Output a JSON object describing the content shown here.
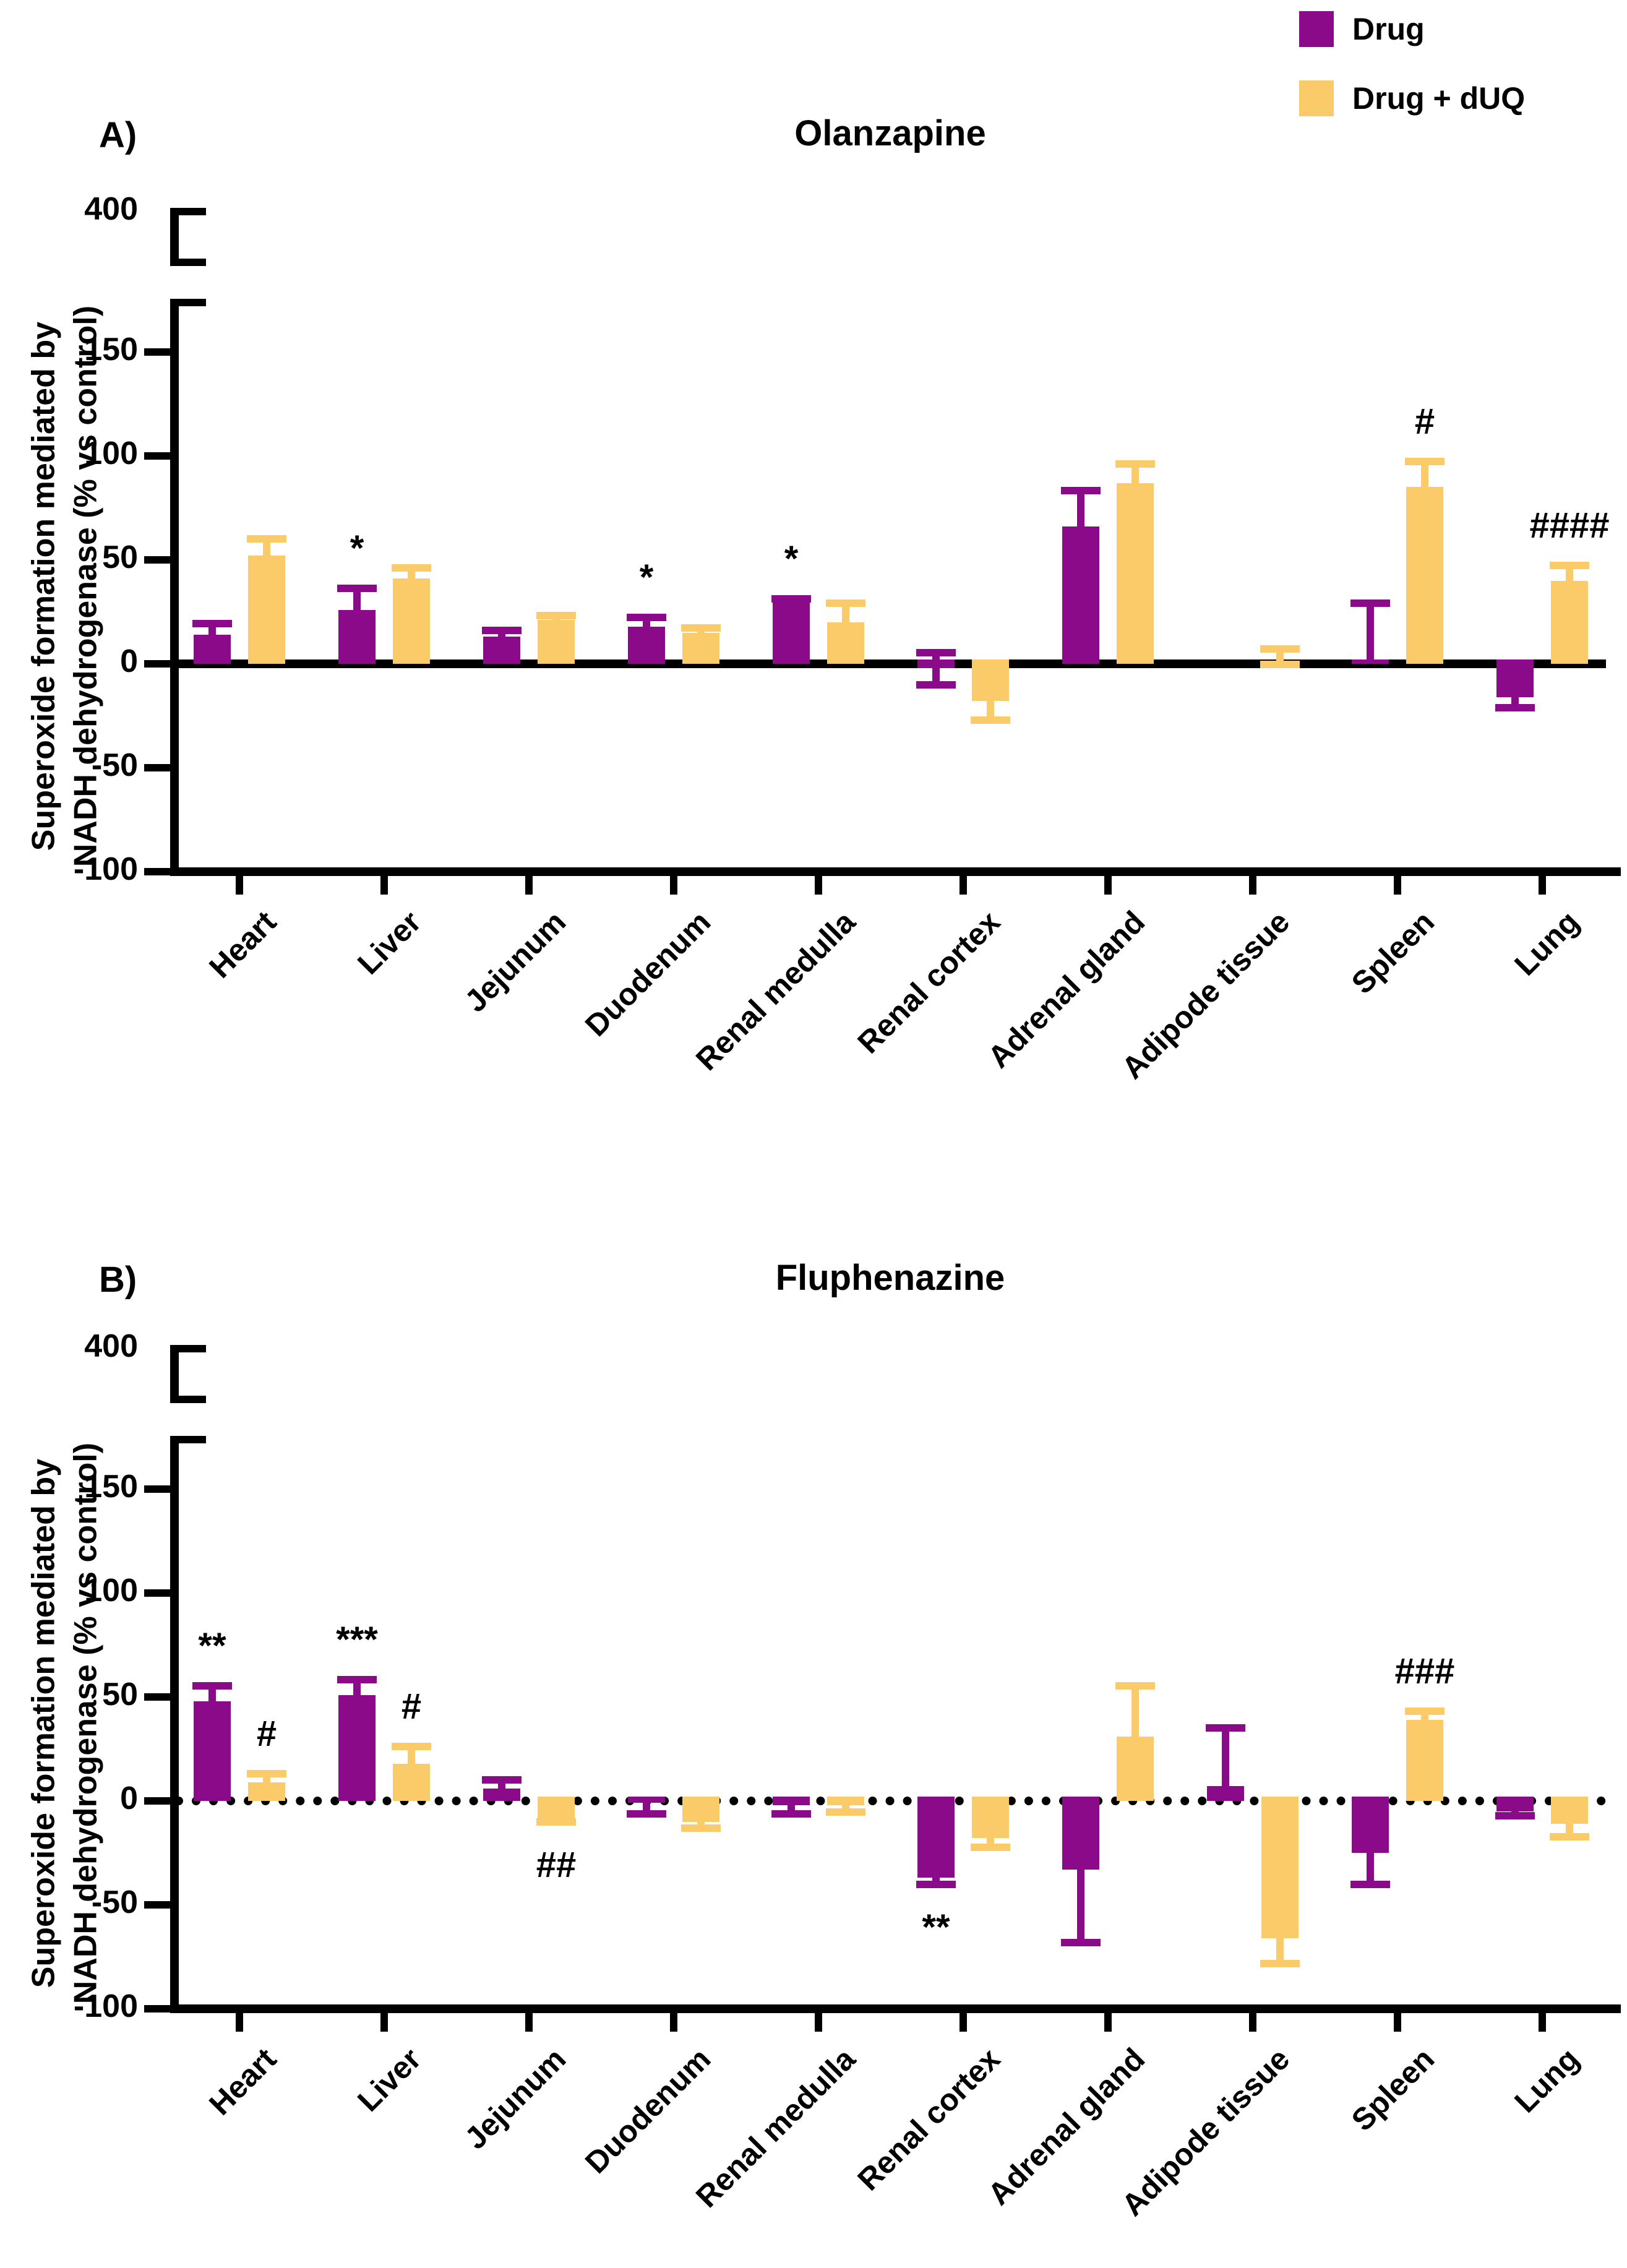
{
  "legend": {
    "items": [
      {
        "label": "Drug",
        "color": "#8B0A89",
        "icon": "square-swatch"
      },
      {
        "label": "Drug + dUQ",
        "color": "#FCCB69",
        "icon": "square-swatch"
      }
    ]
  },
  "y_axis": {
    "label_line1": "Superoxide  formation mediated by",
    "label_line2": "NADH dehydrogenase (% vs control)",
    "ticks": [
      {
        "label": "400",
        "value": 400
      },
      {
        "label": "150",
        "value": 150
      },
      {
        "label": "100",
        "value": 100
      },
      {
        "label": "50",
        "value": 50
      },
      {
        "label": "0",
        "value": 0
      },
      {
        "label": "-50",
        "value": -50
      },
      {
        "label": "-100",
        "value": -100
      }
    ],
    "axis_break": true,
    "break_between": [
      175,
      400
    ]
  },
  "chart_data": [
    {
      "type": "bar",
      "panel_letter": "A)",
      "title": "Olanzapine",
      "zero_line_style": "solid",
      "ylim": [
        -100,
        400
      ],
      "categories": [
        "Heart",
        "Liver",
        "Jejunum",
        "Duodenum",
        "Renal medulla",
        "Renal cortex",
        "Adrenal gland",
        "Adipode tissue",
        "Spleen",
        "Lung"
      ],
      "series": [
        {
          "name": "Drug",
          "color": "#8B0A89",
          "points": [
            {
              "v": 14,
              "e_up": 7,
              "e_dn": 0,
              "sig": "",
              "sig_side": ""
            },
            {
              "v": 26,
              "e_up": 12,
              "e_dn": 0,
              "sig": "*",
              "sig_side": "above"
            },
            {
              "v": 13,
              "e_up": 5,
              "e_dn": 0,
              "sig": "",
              "sig_side": ""
            },
            {
              "v": 18,
              "e_up": 6,
              "e_dn": 0,
              "sig": "*",
              "sig_side": "above"
            },
            {
              "v": 31,
              "e_up": 2,
              "e_dn": 0,
              "sig": "*",
              "sig_side": "above"
            },
            {
              "v": -2,
              "e_up": 9,
              "e_dn": 10,
              "sig": "",
              "sig_side": ""
            },
            {
              "v": 66,
              "e_up": 19,
              "e_dn": 0,
              "sig": "",
              "sig_side": ""
            },
            {
              "v": 0,
              "e_up": 0,
              "e_dn": 0,
              "sig": "",
              "sig_side": ""
            },
            {
              "v": 2,
              "e_up": 29,
              "e_dn": 0,
              "sig": "",
              "sig_side": ""
            },
            {
              "v": -16,
              "e_up": 0,
              "e_dn": 7,
              "sig": "",
              "sig_side": ""
            }
          ]
        },
        {
          "name": "Drug + dUQ",
          "color": "#FCCB69",
          "points": [
            {
              "v": 52,
              "e_up": 10,
              "e_dn": 0,
              "sig": "",
              "sig_side": ""
            },
            {
              "v": 41,
              "e_up": 7,
              "e_dn": 0,
              "sig": "",
              "sig_side": ""
            },
            {
              "v": 21,
              "e_up": 4,
              "e_dn": 0,
              "sig": "",
              "sig_side": ""
            },
            {
              "v": 15,
              "e_up": 4,
              "e_dn": 0,
              "sig": "",
              "sig_side": ""
            },
            {
              "v": 20,
              "e_up": 11,
              "e_dn": 0,
              "sig": "",
              "sig_side": ""
            },
            {
              "v": -18,
              "e_up": 0,
              "e_dn": 11,
              "sig": "",
              "sig_side": ""
            },
            {
              "v": 87,
              "e_up": 11,
              "e_dn": 0,
              "sig": "",
              "sig_side": ""
            },
            {
              "v": 1,
              "e_up": 8,
              "e_dn": 3,
              "sig": "",
              "sig_side": ""
            },
            {
              "v": 85,
              "e_up": 14,
              "e_dn": 0,
              "sig": "#",
              "sig_side": "above"
            },
            {
              "v": 40,
              "e_up": 9,
              "e_dn": 0,
              "sig": "####",
              "sig_side": "above"
            }
          ]
        }
      ]
    },
    {
      "type": "bar",
      "panel_letter": "B)",
      "title": "Fluphenazine",
      "zero_line_style": "dotted",
      "ylim": [
        -100,
        400
      ],
      "categories": [
        "Heart",
        "Liver",
        "Jejunum",
        "Duodenum",
        "Renal medulla",
        "Renal cortex",
        "Adrenal gland",
        "Adipode tissue",
        "Spleen",
        "Lung"
      ],
      "series": [
        {
          "name": "Drug",
          "color": "#8B0A89",
          "points": [
            {
              "v": 48,
              "e_up": 9,
              "e_dn": 0,
              "sig": "**",
              "sig_side": "above"
            },
            {
              "v": 51,
              "e_up": 9,
              "e_dn": 0,
              "sig": "***",
              "sig_side": "above"
            },
            {
              "v": 6,
              "e_up": 6,
              "e_dn": 0,
              "sig": "",
              "sig_side": ""
            },
            {
              "v": -1,
              "e_up": 0,
              "e_dn": 7,
              "sig": "",
              "sig_side": ""
            },
            {
              "v": -2,
              "e_up": 0,
              "e_dn": 6,
              "sig": "",
              "sig_side": ""
            },
            {
              "v": -37,
              "e_up": 0,
              "e_dn": 5,
              "sig": "**",
              "sig_side": "below"
            },
            {
              "v": -33,
              "e_up": 0,
              "e_dn": 37,
              "sig": "",
              "sig_side": ""
            },
            {
              "v": 7,
              "e_up": 30,
              "e_dn": 0,
              "sig": "",
              "sig_side": ""
            },
            {
              "v": -25,
              "e_up": 0,
              "e_dn": 17,
              "sig": "",
              "sig_side": ""
            },
            {
              "v": -5,
              "e_up": 0,
              "e_dn": 4,
              "sig": "",
              "sig_side": ""
            }
          ]
        },
        {
          "name": "Drug + dUQ",
          "color": "#FCCB69",
          "points": [
            {
              "v": 9,
              "e_up": 6,
              "e_dn": 0,
              "sig": "#",
              "sig_side": "above"
            },
            {
              "v": 18,
              "e_up": 10,
              "e_dn": 0,
              "sig": "#",
              "sig_side": "above"
            },
            {
              "v": -9,
              "e_up": 0,
              "e_dn": 3,
              "sig": "##",
              "sig_side": "below"
            },
            {
              "v": -10,
              "e_up": 0,
              "e_dn": 5,
              "sig": "",
              "sig_side": ""
            },
            {
              "v": -2,
              "e_up": 0,
              "e_dn": 5,
              "sig": "",
              "sig_side": ""
            },
            {
              "v": -18,
              "e_up": 0,
              "e_dn": 6,
              "sig": "",
              "sig_side": ""
            },
            {
              "v": 31,
              "e_up": 26,
              "e_dn": 0,
              "sig": "",
              "sig_side": ""
            },
            {
              "v": -66,
              "e_up": 0,
              "e_dn": 14,
              "sig": "",
              "sig_side": ""
            },
            {
              "v": 39,
              "e_up": 6,
              "e_dn": 0,
              "sig": "###",
              "sig_side": "above"
            },
            {
              "v": -11,
              "e_up": 0,
              "e_dn": 8,
              "sig": "",
              "sig_side": ""
            }
          ]
        }
      ]
    }
  ]
}
